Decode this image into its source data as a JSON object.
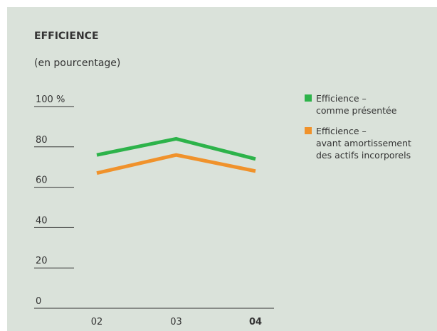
{
  "chart_data": {
    "type": "line",
    "title": "EFFICIENCE",
    "subtitle": "(en pourcentage)",
    "categories": [
      "02",
      "03",
      "04"
    ],
    "series": [
      {
        "name": "Efficience –\ncomme présentée",
        "color": "#2db34a",
        "values": [
          76,
          84,
          74
        ]
      },
      {
        "name": "Efficience –\navant amortissement\ndes actifs incorporels",
        "color": "#f0922b",
        "values": [
          67,
          76,
          68
        ]
      }
    ],
    "ylim": [
      0,
      100
    ],
    "yticks": [
      0,
      20,
      40,
      60,
      80,
      {
        "value": 100,
        "label": "100 %"
      }
    ]
  }
}
